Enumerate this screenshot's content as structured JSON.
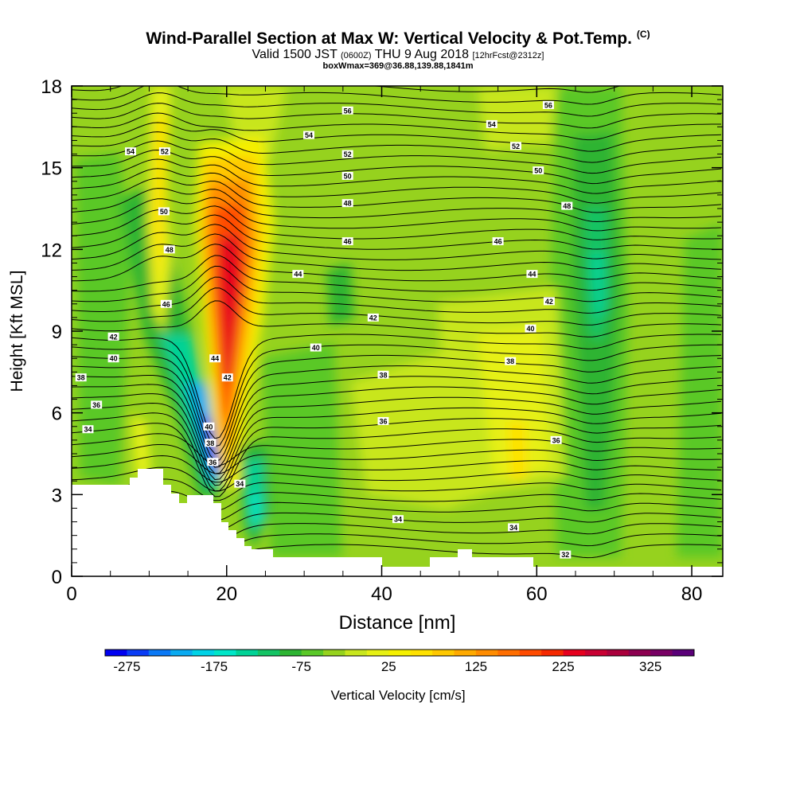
{
  "header": {
    "title": "Wind-Parallel Section at Max W: Vertical Velocity & Pot.Temp.",
    "copyright": "(C)",
    "valid_main": "Valid 1500 JST",
    "valid_utc": "(0600Z)",
    "valid_date": "THU 9 Aug 2018",
    "forecast": "[12hrFcst@2312z]",
    "box_info": "boxWmax=369@36.88,139.88,1841m"
  },
  "chart_data": {
    "type": "heatmap",
    "xlabel": "Distance [nm]",
    "ylabel": "Height [Kft MSL]",
    "xlim": [
      0,
      84
    ],
    "ylim": [
      0,
      18
    ],
    "x_ticks": [
      "0",
      "20",
      "40",
      "60",
      "80"
    ],
    "y_ticks": [
      "0",
      "3",
      "6",
      "9",
      "12",
      "15",
      "18"
    ],
    "x_tick_values": [
      0,
      20,
      40,
      60,
      80
    ],
    "y_tick_values": [
      0,
      3,
      6,
      9,
      12,
      15,
      18
    ],
    "colorbar": {
      "title": "Vertical Velocity [cm/s]",
      "tick_labels": [
        "-275",
        "-175",
        "-75",
        "25",
        "125",
        "225",
        "325"
      ],
      "range": [
        -300,
        375
      ],
      "colors": [
        "#0000f0",
        "#0a3cf5",
        "#0a78f5",
        "#0aaaf0",
        "#00d2e6",
        "#00e6c8",
        "#00d296",
        "#14c364",
        "#2db432",
        "#5ac828",
        "#96d21e",
        "#c8e61e",
        "#e6f014",
        "#f5f000",
        "#ffe100",
        "#ffc800",
        "#ffaa00",
        "#ff8c00",
        "#ff6e00",
        "#ff4b00",
        "#f52800",
        "#e6001e",
        "#c80032",
        "#aa003c",
        "#8c0050",
        "#780064",
        "#5a0078"
      ]
    },
    "contour_labels": [
      {
        "text": "56",
        "x": 35.6,
        "y": 17.1
      },
      {
        "text": "54",
        "x": 30.6,
        "y": 16.2
      },
      {
        "text": "52",
        "x": 35.6,
        "y": 15.5
      },
      {
        "text": "50",
        "x": 35.6,
        "y": 14.7
      },
      {
        "text": "48",
        "x": 35.6,
        "y": 13.7
      },
      {
        "text": "46",
        "x": 35.6,
        "y": 12.3
      },
      {
        "text": "44",
        "x": 29.2,
        "y": 11.1
      },
      {
        "text": "42",
        "x": 38.9,
        "y": 9.5
      },
      {
        "text": "40",
        "x": 31.5,
        "y": 8.4
      },
      {
        "text": "38",
        "x": 40.2,
        "y": 7.4
      },
      {
        "text": "36",
        "x": 40.2,
        "y": 5.7
      },
      {
        "text": "34",
        "x": 42.1,
        "y": 2.1
      },
      {
        "text": "56",
        "x": 61.5,
        "y": 17.3
      },
      {
        "text": "54",
        "x": 54.2,
        "y": 16.6
      },
      {
        "text": "52",
        "x": 57.3,
        "y": 15.8
      },
      {
        "text": "50",
        "x": 60.2,
        "y": 14.9
      },
      {
        "text": "48",
        "x": 63.9,
        "y": 13.6
      },
      {
        "text": "46",
        "x": 55.0,
        "y": 12.3
      },
      {
        "text": "44",
        "x": 59.4,
        "y": 11.1
      },
      {
        "text": "42",
        "x": 61.6,
        "y": 10.1
      },
      {
        "text": "40",
        "x": 59.2,
        "y": 9.1
      },
      {
        "text": "38",
        "x": 56.6,
        "y": 7.9
      },
      {
        "text": "36",
        "x": 62.5,
        "y": 5.0
      },
      {
        "text": "34",
        "x": 57.0,
        "y": 1.8
      },
      {
        "text": "32",
        "x": 63.7,
        "y": 0.8
      },
      {
        "text": "54",
        "x": 7.6,
        "y": 15.6
      },
      {
        "text": "52",
        "x": 12.0,
        "y": 15.6
      },
      {
        "text": "50",
        "x": 11.9,
        "y": 13.4
      },
      {
        "text": "48",
        "x": 12.6,
        "y": 12.0
      },
      {
        "text": "46",
        "x": 12.2,
        "y": 10.0
      },
      {
        "text": "42",
        "x": 5.4,
        "y": 8.8
      },
      {
        "text": "40",
        "x": 5.4,
        "y": 8.0
      },
      {
        "text": "38",
        "x": 1.2,
        "y": 7.3
      },
      {
        "text": "36",
        "x": 3.2,
        "y": 6.3
      },
      {
        "text": "34",
        "x": 2.1,
        "y": 5.4
      },
      {
        "text": "44",
        "x": 18.5,
        "y": 8.0
      },
      {
        "text": "42",
        "x": 20.1,
        "y": 7.3
      },
      {
        "text": "40",
        "x": 17.7,
        "y": 5.5
      },
      {
        "text": "38",
        "x": 17.9,
        "y": 4.9
      },
      {
        "text": "36",
        "x": 18.2,
        "y": 4.2
      },
      {
        "text": "34",
        "x": 21.7,
        "y": 3.4
      }
    ]
  }
}
